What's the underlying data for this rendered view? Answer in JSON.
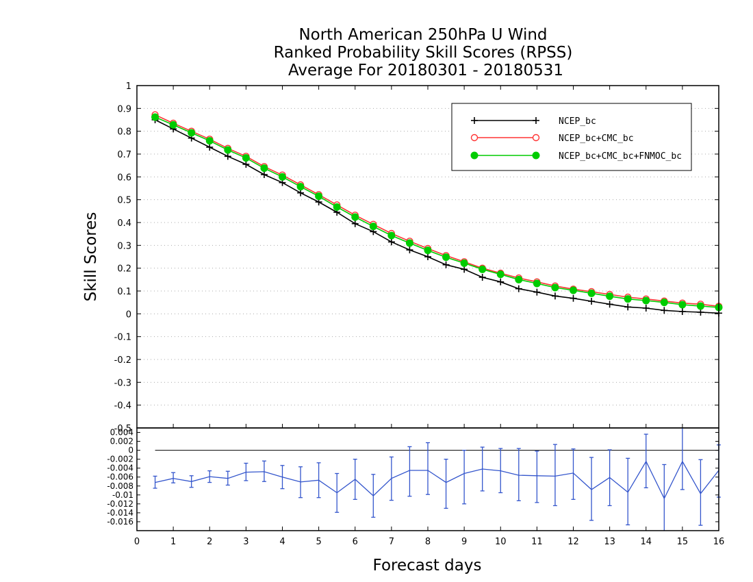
{
  "chart_data": {
    "type": "line",
    "title": [
      "North American 250hPa U Wind",
      "Ranked Probability Skill Scores (RPSS)",
      "Average For 20180301 - 20180531"
    ],
    "xlabel": "Forecast days",
    "ylabel": "Skill Scores",
    "xlim": [
      0,
      16
    ],
    "ylim": [
      -0.5,
      1
    ],
    "x_ticks": [
      "0",
      "1",
      "2",
      "3",
      "4",
      "5",
      "6",
      "7",
      "8",
      "9",
      "10",
      "11",
      "12",
      "13",
      "14",
      "15",
      "16"
    ],
    "y_ticks": [
      "-0.4",
      "-0.3",
      "-0.2",
      "-0.1",
      "0",
      "0.1",
      "0.2",
      "0.3",
      "0.4",
      "0.5",
      "0.6",
      "0.7",
      "0.8",
      "0.9",
      "1"
    ],
    "grid": true,
    "legend_position": "top-right",
    "x": [
      0.5,
      1,
      1.5,
      2,
      2.5,
      3,
      3.5,
      4,
      4.5,
      5,
      5.5,
      6,
      6.5,
      7,
      7.5,
      8,
      8.5,
      9,
      9.5,
      10,
      10.5,
      11,
      11.5,
      12,
      12.5,
      13,
      13.5,
      14,
      14.5,
      15,
      15.5,
      16
    ],
    "series": [
      {
        "name": "NCEP_bc",
        "color": "#000000",
        "marker": "plus",
        "values": [
          0.85,
          0.81,
          0.77,
          0.73,
          0.69,
          0.655,
          0.61,
          0.575,
          0.53,
          0.49,
          0.445,
          0.395,
          0.36,
          0.315,
          0.28,
          0.25,
          0.215,
          0.195,
          0.16,
          0.14,
          0.11,
          0.095,
          0.078,
          0.068,
          0.055,
          0.042,
          0.03,
          0.025,
          0.015,
          0.01,
          0.007,
          0.003
        ]
      },
      {
        "name": "NCEP_bc+CMC_bc",
        "color": "#ff3333",
        "marker": "open-circle",
        "values": [
          0.872,
          0.835,
          0.8,
          0.765,
          0.725,
          0.69,
          0.645,
          0.608,
          0.565,
          0.522,
          0.477,
          0.432,
          0.392,
          0.352,
          0.318,
          0.286,
          0.255,
          0.228,
          0.2,
          0.178,
          0.157,
          0.14,
          0.122,
          0.108,
          0.097,
          0.085,
          0.073,
          0.065,
          0.056,
          0.047,
          0.042,
          0.033
        ]
      },
      {
        "name": "NCEP_bc+CMC_bc+FNMOC_bc",
        "color": "#00cc00",
        "marker": "filled-circle",
        "values": [
          0.862,
          0.828,
          0.793,
          0.758,
          0.718,
          0.683,
          0.638,
          0.6,
          0.557,
          0.515,
          0.468,
          0.424,
          0.383,
          0.343,
          0.31,
          0.278,
          0.248,
          0.222,
          0.195,
          0.173,
          0.15,
          0.133,
          0.115,
          0.103,
          0.09,
          0.077,
          0.065,
          0.058,
          0.05,
          0.04,
          0.034,
          0.028
        ]
      }
    ],
    "difference_panel": {
      "type": "line",
      "ylim": [
        -0.018,
        0.005
      ],
      "y_ticks": [
        "-0.016",
        "-0.014",
        "-0.012",
        "-0.01",
        "-0.008",
        "-0.006",
        "-0.004",
        "-0.002",
        "0",
        "0.002",
        "0.004"
      ],
      "color": "#3355cc",
      "zero_line": true,
      "x": [
        0.5,
        1,
        1.5,
        2,
        2.5,
        3,
        3.5,
        4,
        4.5,
        5,
        5.5,
        6,
        6.5,
        7,
        7.5,
        8,
        8.5,
        9,
        9.5,
        10,
        10.5,
        11,
        11.5,
        12,
        12.5,
        13,
        13.5,
        14,
        14.5,
        15,
        15.5,
        16
      ],
      "values": [
        -0.0072,
        -0.0063,
        -0.007,
        -0.0059,
        -0.0063,
        -0.0049,
        -0.0048,
        -0.006,
        -0.0071,
        -0.0067,
        -0.0095,
        -0.0065,
        -0.0102,
        -0.0063,
        -0.0045,
        -0.0045,
        -0.0072,
        -0.0052,
        -0.0042,
        -0.0046,
        -0.0056,
        -0.0057,
        -0.0058,
        -0.0051,
        -0.0088,
        -0.0061,
        -0.0094,
        -0.0025,
        -0.0108,
        -0.0025,
        -0.0097,
        -0.0045
      ],
      "error_low": [
        -0.0085,
        -0.0073,
        -0.0083,
        -0.0072,
        -0.0078,
        -0.0068,
        -0.007,
        -0.0086,
        -0.0106,
        -0.0106,
        -0.0139,
        -0.011,
        -0.015,
        -0.0112,
        -0.0103,
        -0.0099,
        -0.013,
        -0.012,
        -0.0091,
        -0.0095,
        -0.0113,
        -0.0117,
        -0.0124,
        -0.011,
        -0.0157,
        -0.0124,
        -0.0167,
        -0.0084,
        -0.0185,
        -0.0088,
        -0.0168,
        -0.0105
      ],
      "error_high": [
        -0.0058,
        -0.005,
        -0.0057,
        -0.0046,
        -0.0047,
        -0.0029,
        -0.0024,
        -0.0034,
        -0.0037,
        -0.0028,
        -0.0052,
        -0.002,
        -0.0054,
        -0.0015,
        0.0008,
        0.0017,
        -0.002,
        0.0,
        0.0007,
        0.0004,
        0.0004,
        -0.0002,
        0.0013,
        0.0003,
        -0.0016,
        0.0001,
        -0.0018,
        0.0036,
        -0.0032,
        0.0052,
        -0.0021,
        0.0012
      ]
    }
  }
}
